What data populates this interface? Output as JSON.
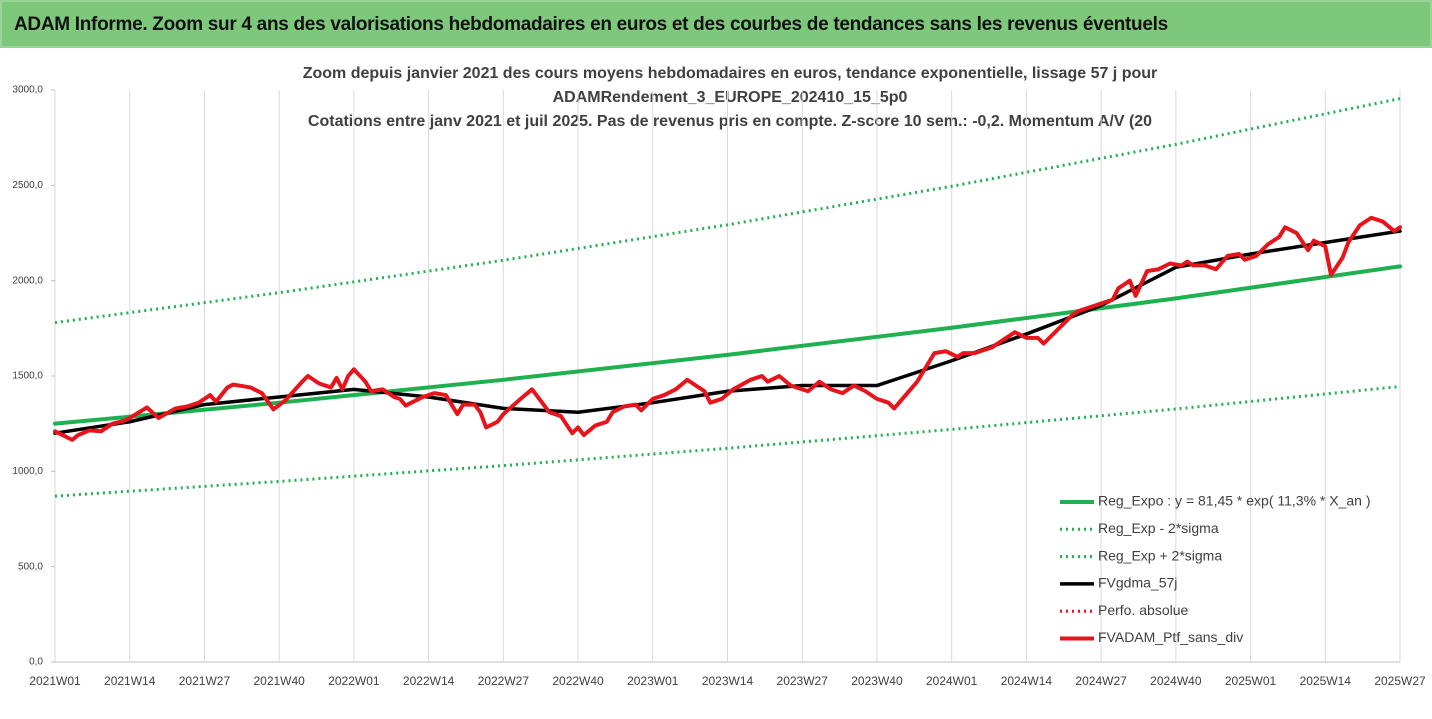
{
  "header": {
    "title": "ADAM Informe. Zoom sur 4 ans des valorisations hebdomadaires en euros et des courbes de tendances sans les revenus éventuels"
  },
  "chart_data": {
    "type": "line",
    "title": [
      "Zoom depuis janvier 2021 des cours moyens hebdomadaires  en euros, tendance exponentielle, lissage 57 j pour",
      "ADAMRendement_3_EUROPE_202410_15_5p0",
      "Cotations entre janv 2021 et juil 2025. Pas de revenus pris en compte. Z-score 10 sem.: -0,2. Momentum A/V (20"
    ],
    "xlim": [
      0,
      234
    ],
    "xticks": [
      {
        "value": 0,
        "label": "2021W01"
      },
      {
        "value": 13,
        "label": "2021W14"
      },
      {
        "value": 26,
        "label": "2021W27"
      },
      {
        "value": 39,
        "label": "2021W40"
      },
      {
        "value": 52,
        "label": "2022W01"
      },
      {
        "value": 65,
        "label": "2022W14"
      },
      {
        "value": 78,
        "label": "2022W27"
      },
      {
        "value": 91,
        "label": "2022W40"
      },
      {
        "value": 104,
        "label": "2023W01"
      },
      {
        "value": 117,
        "label": "2023W14"
      },
      {
        "value": 130,
        "label": "2023W27"
      },
      {
        "value": 143,
        "label": "2023W40"
      },
      {
        "value": 156,
        "label": "2024W01"
      },
      {
        "value": 169,
        "label": "2024W14"
      },
      {
        "value": 182,
        "label": "2024W27"
      },
      {
        "value": 195,
        "label": "2024W40"
      },
      {
        "value": 208,
        "label": "2025W01"
      },
      {
        "value": 221,
        "label": "2025W14"
      },
      {
        "value": 234,
        "label": "2025W27"
      }
    ],
    "ylim": [
      0,
      3000
    ],
    "yticks": [
      {
        "value": 0,
        "label": "0,0"
      },
      {
        "value": 500,
        "label": "500,0"
      },
      {
        "value": 1000,
        "label": "1000,0"
      },
      {
        "value": 1500,
        "label": "1500,0"
      },
      {
        "value": 2000,
        "label": "2000,0"
      },
      {
        "value": 2500,
        "label": "2500,0"
      },
      {
        "value": 3000,
        "label": "3000,0"
      }
    ],
    "grid": "x",
    "legend": "lower right",
    "series": [
      {
        "name": "Reg_Expo : y = 81,45 * exp( 11,3% *  X_an )",
        "color": "#1fb050",
        "line_style": "solid",
        "width": 4,
        "x": [
          0,
          39,
          78,
          117,
          156,
          195,
          234
        ],
        "values": [
          1250,
          1360,
          1480,
          1611,
          1753,
          1907,
          2075
        ]
      },
      {
        "name": "Reg_Exp - 2*sigma",
        "color": "#1fb050",
        "line_style": "dotted",
        "width": 3,
        "x": [
          0,
          39,
          78,
          117,
          156,
          195,
          234
        ],
        "values": [
          870,
          947,
          1030,
          1121,
          1220,
          1327,
          1445
        ]
      },
      {
        "name": "Reg_Exp + 2*sigma",
        "color": "#1fb050",
        "line_style": "dotted",
        "width": 3,
        "x": [
          0,
          39,
          78,
          117,
          156,
          195,
          234
        ],
        "values": [
          1780,
          1937,
          2107,
          2293,
          2495,
          2715,
          2955
        ]
      },
      {
        "name": "FVgdma_57j",
        "color": "#000000",
        "line_style": "solid",
        "width": 3.5,
        "x": [
          0,
          13,
          26,
          39,
          52,
          65,
          78,
          91,
          104,
          117,
          130,
          143,
          156,
          169,
          182,
          195,
          208,
          221,
          234
        ],
        "values": [
          1200,
          1260,
          1350,
          1390,
          1430,
          1390,
          1330,
          1310,
          1360,
          1420,
          1450,
          1450,
          1580,
          1720,
          1870,
          2070,
          2140,
          2200,
          2260
        ]
      },
      {
        "name": "Perfo. absolue",
        "color": "#e8141b",
        "line_style": "dotted",
        "width": 3,
        "x": [],
        "values": []
      },
      {
        "name": "FVADAM_Ptf_sans_div",
        "color": "#e8141b",
        "line_style": "solid",
        "width": 4,
        "x": [
          0,
          3,
          4,
          6,
          8,
          10,
          12,
          13,
          16,
          18,
          21,
          23,
          25,
          27,
          28,
          30,
          31,
          34,
          36,
          38,
          40,
          43,
          44,
          46,
          48,
          49,
          50,
          51,
          52,
          54,
          55,
          57,
          59,
          60,
          61,
          64,
          66,
          68,
          70,
          71,
          73,
          74,
          75,
          77,
          78,
          81,
          83,
          85,
          86,
          88,
          90,
          91,
          92,
          94,
          96,
          97,
          99,
          101,
          102,
          104,
          106,
          108,
          110,
          111,
          113,
          114,
          116,
          118,
          121,
          123,
          124,
          126,
          128,
          130,
          131,
          133,
          135,
          137,
          139,
          141,
          143,
          145,
          146,
          148,
          150,
          151,
          153,
          155,
          157,
          158,
          160,
          163,
          164,
          167,
          169,
          171,
          172,
          173,
          175,
          177,
          178,
          180,
          182,
          184,
          185,
          187,
          188,
          190,
          192,
          194,
          196,
          197,
          198,
          200,
          202,
          204,
          206,
          207,
          209,
          211,
          213,
          214,
          216,
          218,
          219,
          221,
          222,
          224,
          225,
          227,
          229,
          231,
          233,
          234
        ],
        "values": [
          1210,
          1165,
          1190,
          1215,
          1210,
          1250,
          1265,
          1280,
          1335,
          1280,
          1330,
          1340,
          1360,
          1400,
          1365,
          1440,
          1455,
          1440,
          1410,
          1325,
          1370,
          1470,
          1500,
          1460,
          1440,
          1490,
          1430,
          1500,
          1535,
          1470,
          1420,
          1430,
          1390,
          1380,
          1345,
          1390,
          1410,
          1400,
          1300,
          1350,
          1350,
          1310,
          1230,
          1260,
          1300,
          1380,
          1430,
          1350,
          1310,
          1290,
          1200,
          1230,
          1190,
          1240,
          1260,
          1310,
          1340,
          1350,
          1320,
          1380,
          1400,
          1430,
          1480,
          1460,
          1420,
          1360,
          1380,
          1430,
          1480,
          1500,
          1470,
          1500,
          1450,
          1430,
          1420,
          1470,
          1430,
          1410,
          1450,
          1420,
          1380,
          1360,
          1330,
          1400,
          1470,
          1520,
          1620,
          1630,
          1600,
          1620,
          1620,
          1650,
          1670,
          1730,
          1700,
          1700,
          1670,
          1700,
          1760,
          1820,
          1840,
          1860,
          1880,
          1900,
          1960,
          2000,
          1920,
          2050,
          2060,
          2090,
          2080,
          2100,
          2080,
          2080,
          2060,
          2130,
          2140,
          2110,
          2130,
          2190,
          2230,
          2280,
          2250,
          2160,
          2210,
          2180,
          2030,
          2120,
          2200,
          2290,
          2330,
          2310,
          2260,
          2280
        ]
      }
    ]
  }
}
